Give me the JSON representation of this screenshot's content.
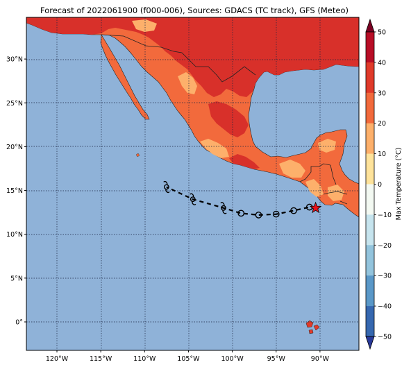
{
  "title": "Forecast of 2022061900 (f000-006), Sources: GDACS (TC track), GFS (Meteo)",
  "map": {
    "lat_range": [
      -3,
      34.5
    ],
    "lon_range": [
      -123.5,
      -104.0
    ],
    "lat_ticks": [
      {
        "value": 30,
        "label": "30°N"
      },
      {
        "value": 25,
        "label": "25°N"
      },
      {
        "value": 20,
        "label": "20°N"
      },
      {
        "value": 15,
        "label": "15°N"
      },
      {
        "value": 10,
        "label": "10°N"
      },
      {
        "value": 5,
        "label": "5°N"
      },
      {
        "value": 0,
        "label": "0°"
      }
    ],
    "lon_ticks": [
      {
        "value": -120,
        "label": "120°W"
      },
      {
        "value": -115,
        "label": "115°W"
      },
      {
        "value": -110,
        "label": "110°W"
      },
      {
        "value": -105,
        "label": "105°W"
      },
      {
        "value": -100,
        "label": "100°W"
      },
      {
        "value": -95,
        "label": "95°W"
      },
      {
        "value": -90,
        "label": "90°W"
      }
    ],
    "ocean_color": "#8fb2d8",
    "track": {
      "current_position": {
        "lat": 13.0,
        "lon": -90.5
      },
      "forecast_points": [
        {
          "lat": 13.1,
          "lon": -91.2,
          "symbol": "circle"
        },
        {
          "lat": 12.7,
          "lon": -93.0,
          "symbol": "circle"
        },
        {
          "lat": 12.3,
          "lon": -95.0,
          "symbol": "circle"
        },
        {
          "lat": 12.2,
          "lon": -97.0,
          "symbol": "circle"
        },
        {
          "lat": 12.4,
          "lon": -99.0,
          "symbol": "circle"
        },
        {
          "lat": 13.0,
          "lon": -101.0,
          "symbol": "storm"
        },
        {
          "lat": 14.0,
          "lon": -104.5,
          "symbol": "storm"
        },
        {
          "lat": 15.4,
          "lon": -107.5,
          "symbol": "storm"
        }
      ]
    }
  },
  "colorbar": {
    "label": "Max Temperature (°C)",
    "ticks": [
      "50",
      "40",
      "30",
      "20",
      "10",
      "0",
      "−10",
      "−20",
      "−30",
      "−40",
      "−50"
    ],
    "colors": [
      "#7a0022",
      "#b80d26",
      "#e03a2a",
      "#f26a3c",
      "#fdb06b",
      "#fee39b",
      "#f3f9f2",
      "#c6e4ee",
      "#93c4dd",
      "#5a98c8",
      "#3668b0",
      "#28399a"
    ]
  }
}
